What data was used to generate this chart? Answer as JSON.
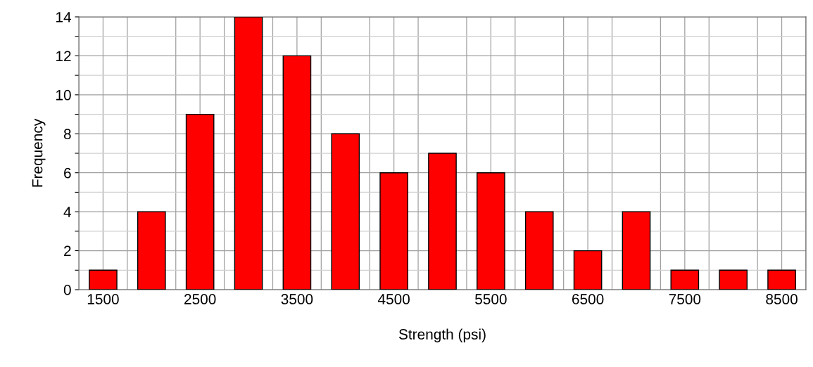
{
  "chart_data": {
    "type": "bar",
    "xlabel": "Strength (psi)",
    "ylabel": "Frequency",
    "x": [
      1500,
      2000,
      2500,
      3000,
      3500,
      4000,
      4500,
      5000,
      5500,
      6000,
      6500,
      7000,
      7500,
      8000,
      8500
    ],
    "series": [
      {
        "color": "#ff0000",
        "values": [
          1,
          4,
          9,
          14,
          12,
          8,
          6,
          7,
          6,
          4,
          2,
          4,
          1,
          1,
          1
        ]
      }
    ],
    "xlim": [
      1250,
      8750
    ],
    "xticks": [
      {
        "value": 1250,
        "label": null
      },
      1500,
      {
        "value": 1750,
        "label": null
      },
      {
        "value": 2250,
        "label": null
      },
      2500,
      {
        "value": 2750,
        "label": null
      },
      {
        "value": 3250,
        "label": null
      },
      3500,
      {
        "value": 3750,
        "label": null
      },
      {
        "value": 4250,
        "label": null
      },
      4500,
      {
        "value": 4750,
        "label": null
      },
      {
        "value": 5250,
        "label": null
      },
      5500,
      {
        "value": 5750,
        "label": null
      },
      {
        "value": 6250,
        "label": null
      },
      6500,
      {
        "value": 6750,
        "label": null
      },
      {
        "value": 7250,
        "label": null
      },
      7500,
      {
        "value": 7750,
        "label": null
      },
      {
        "value": 8250,
        "label": null
      },
      8500,
      {
        "value": 8750,
        "label": null
      }
    ],
    "ylim": [
      0,
      14
    ],
    "yticks": [
      0,
      {
        "value": 1,
        "label": null
      },
      2,
      {
        "value": 3,
        "label": null
      },
      4,
      {
        "value": 5,
        "label": null
      },
      6,
      {
        "value": 7,
        "label": null
      },
      8,
      {
        "value": 9,
        "label": null
      },
      10,
      {
        "value": 11,
        "label": null
      },
      12,
      {
        "value": 13,
        "label": null
      },
      14
    ],
    "grid": true
  }
}
